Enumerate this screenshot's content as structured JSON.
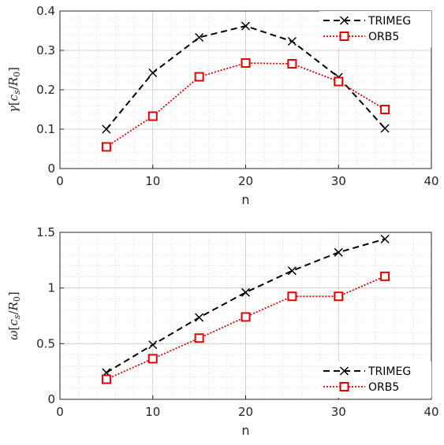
{
  "chart_data": [
    {
      "type": "line",
      "xlabel": "n",
      "ylabel": "γ[c_s/R_0]",
      "ylabel_parts": {
        "sym": "γ",
        "open": "[",
        "c": "c",
        "csub": "s",
        "slash": "/",
        "r": "R",
        "rsub": "0",
        "close": "]"
      },
      "xlim": [
        0,
        40
      ],
      "ylim": [
        0,
        0.4
      ],
      "xticks": [
        0,
        10,
        20,
        30,
        40
      ],
      "yticks": [
        0,
        0.1,
        0.2,
        0.3,
        0.4
      ],
      "xtick_labels": [
        "0",
        "10",
        "20",
        "30",
        "40"
      ],
      "ytick_labels": [
        "0",
        "0.1",
        "0.2",
        "0.3",
        "0.4"
      ],
      "grid": true,
      "legend_position": "top-right",
      "series": [
        {
          "name": "TRIMEG",
          "color": "#000000",
          "marker": "x",
          "line": "dashed",
          "x": [
            5,
            10,
            15,
            20,
            25,
            30,
            35
          ],
          "y": [
            0.1,
            0.243,
            0.333,
            0.362,
            0.323,
            0.232,
            0.102
          ]
        },
        {
          "name": "ORB5",
          "color": "#e00000",
          "marker": "square",
          "line": "dotted",
          "x": [
            5,
            10,
            15,
            20,
            25,
            30,
            35
          ],
          "y": [
            0.055,
            0.133,
            0.233,
            0.268,
            0.266,
            0.221,
            0.15
          ]
        }
      ]
    },
    {
      "type": "line",
      "xlabel": "n",
      "ylabel": "ω[c_s/R_0]",
      "ylabel_parts": {
        "sym": "ω",
        "open": "[",
        "c": "c",
        "csub": "s",
        "slash": "/",
        "r": "R",
        "rsub": "0",
        "close": "]"
      },
      "xlim": [
        0,
        40
      ],
      "ylim": [
        0,
        1.5
      ],
      "xticks": [
        0,
        10,
        20,
        30,
        40
      ],
      "yticks": [
        0,
        0.5,
        1,
        1.5
      ],
      "xtick_labels": [
        "0",
        "10",
        "20",
        "30",
        "40"
      ],
      "ytick_labels": [
        "0",
        "0.5",
        "1",
        "1.5"
      ],
      "grid": true,
      "legend_position": "bottom-right",
      "series": [
        {
          "name": "TRIMEG",
          "color": "#000000",
          "marker": "x",
          "line": "dashed",
          "x": [
            5,
            10,
            15,
            20,
            25,
            30,
            35
          ],
          "y": [
            0.24,
            0.49,
            0.735,
            0.96,
            1.155,
            1.32,
            1.44
          ]
        },
        {
          "name": "ORB5",
          "color": "#e00000",
          "marker": "square",
          "line": "dotted",
          "x": [
            5,
            10,
            15,
            20,
            25,
            30,
            35
          ],
          "y": [
            0.18,
            0.365,
            0.55,
            0.74,
            0.925,
            0.925,
            1.105
          ]
        }
      ]
    }
  ]
}
